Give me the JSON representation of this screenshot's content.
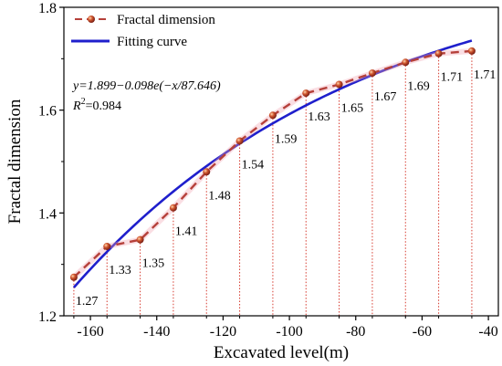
{
  "chart_data": {
    "type": "line",
    "xlabel": "Excavated level(m)",
    "ylabel": "Fractal dimension",
    "xlim": [
      -168,
      -37
    ],
    "ylim": [
      1.2,
      1.8
    ],
    "xticks": [
      -160,
      -140,
      -120,
      -100,
      -80,
      -60,
      -40
    ],
    "yticks": [
      1.2,
      1.4,
      1.6,
      1.8
    ],
    "xtick_labels": [
      "-160",
      "-140",
      "-120",
      "-100",
      "-80",
      "-60",
      "-40"
    ],
    "ytick_labels": [
      "1.2",
      "1.4",
      "1.6",
      "1.8"
    ],
    "legend_position": "top-left",
    "series": [
      {
        "name": "Fractal dimension",
        "style": "dashed line with sphere markers",
        "color": "#b5403a",
        "x": [
          -165,
          -155,
          -145,
          -135,
          -125,
          -115,
          -105,
          -95,
          -85,
          -75,
          -65,
          -55,
          -45
        ],
        "y": [
          1.275,
          1.335,
          1.348,
          1.41,
          1.48,
          1.54,
          1.59,
          1.633,
          1.65,
          1.672,
          1.693,
          1.71,
          1.715
        ],
        "labels": [
          "1.27",
          "1.33",
          "1.35",
          "1.41",
          "1.48",
          "1.54",
          "1.59",
          "1.63",
          "1.65",
          "1.67",
          "1.69",
          "1.71",
          "1.71"
        ]
      },
      {
        "name": "Fitting curve",
        "style": "solid line",
        "color": "#1f1fcc",
        "formula": "y = 1.899 - 0.098*exp(-x/87.646)",
        "x_range": [
          -165,
          -45
        ]
      }
    ],
    "annotations": {
      "equation": "y=1.899−0.098e(−x/87.646)",
      "r2_label": "R",
      "r2_sup": "2",
      "r2_value": "=0.984"
    },
    "colors": {
      "fit": "#1f1fcc",
      "data_line": "#b5403a",
      "marker": "#c0392b",
      "guide": "#d63a2e"
    }
  }
}
